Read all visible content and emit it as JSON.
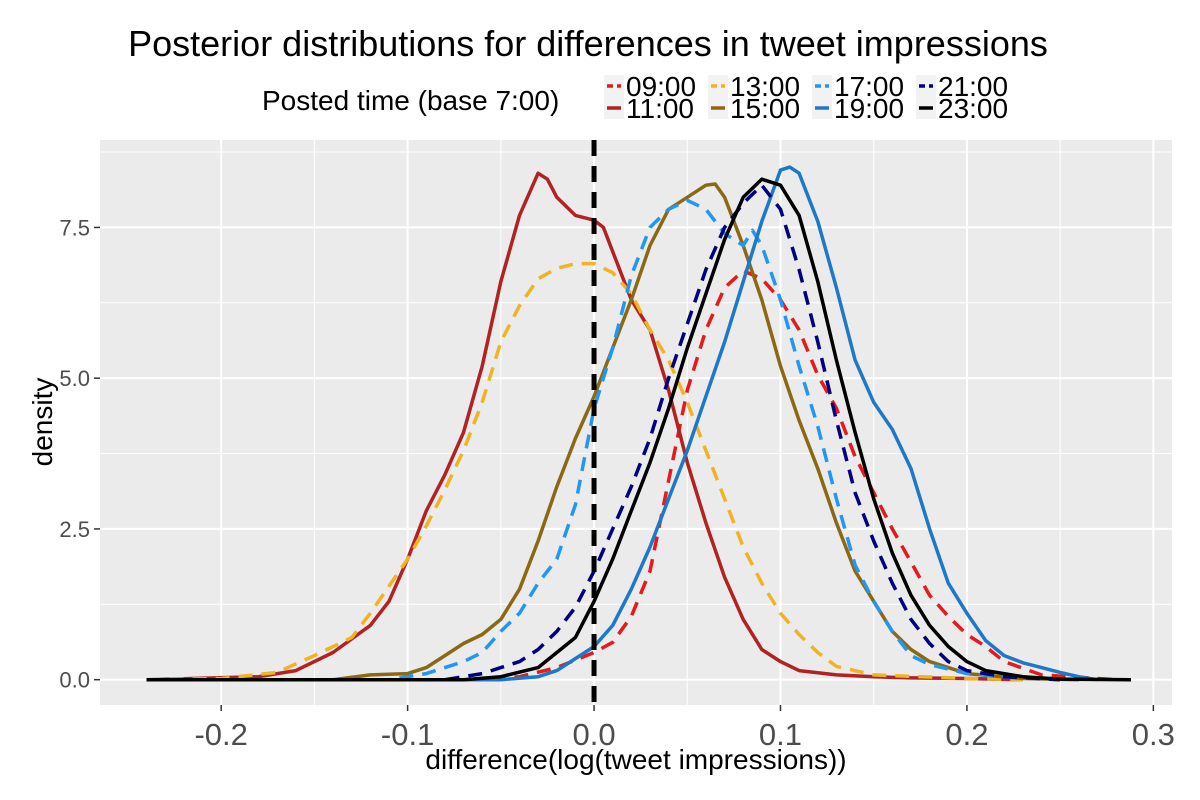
{
  "chart_data": {
    "type": "line",
    "title": "Posterior distributions for differences in tweet impressions",
    "xlabel": "difference(log(tweet impressions))",
    "ylabel": "density",
    "xlim": [
      -0.265,
      0.31
    ],
    "ylim": [
      -0.42,
      8.95
    ],
    "x_ticks": [
      -0.2,
      -0.1,
      0.0,
      0.1,
      0.2,
      0.3
    ],
    "x_tick_labels": [
      "-0.2",
      "-0.1",
      "0.0",
      "0.1",
      "0.2",
      "0.3"
    ],
    "y_ticks": [
      0.0,
      2.5,
      5.0,
      7.5
    ],
    "y_tick_labels": [
      "0.0",
      "2.5",
      "5.0",
      "7.5"
    ],
    "grid": true,
    "reference_line": {
      "x": 0.0,
      "style": "dashed",
      "color": "#000000"
    },
    "legend": {
      "title": "Posted time (base 7:00)",
      "placement": "top",
      "entries": [
        {
          "name": "09:00",
          "color": "#e41a1c",
          "dash": "dashed"
        },
        {
          "name": "11:00",
          "color": "#b22222",
          "dash": "solid"
        },
        {
          "name": "13:00",
          "color": "#f0b323",
          "dash": "dashed"
        },
        {
          "name": "15:00",
          "color": "#8b6914",
          "dash": "solid"
        },
        {
          "name": "17:00",
          "color": "#2196f3",
          "dash": "dashed"
        },
        {
          "name": "19:00",
          "color": "#1e78c8",
          "dash": "solid"
        },
        {
          "name": "21:00",
          "color": "#000080",
          "dash": "dashed"
        },
        {
          "name": "23:00",
          "color": "#000000",
          "dash": "solid"
        }
      ]
    },
    "series": [
      {
        "name": "09:00",
        "color": "#e41a1c",
        "dash": "dashed",
        "points": [
          [
            -0.24,
            0
          ],
          [
            -0.06,
            0
          ],
          [
            -0.04,
            0.05
          ],
          [
            -0.02,
            0.2
          ],
          [
            0,
            0.45
          ],
          [
            0.01,
            0.62
          ],
          [
            0.02,
            1.05
          ],
          [
            0.03,
            1.8
          ],
          [
            0.04,
            3.3
          ],
          [
            0.05,
            4.8
          ],
          [
            0.06,
            5.8
          ],
          [
            0.07,
            6.5
          ],
          [
            0.08,
            6.78
          ],
          [
            0.09,
            6.65
          ],
          [
            0.1,
            6.3
          ],
          [
            0.11,
            5.8
          ],
          [
            0.12,
            5.05
          ],
          [
            0.13,
            4.5
          ],
          [
            0.14,
            3.7
          ],
          [
            0.15,
            3.1
          ],
          [
            0.16,
            2.5
          ],
          [
            0.17,
            1.95
          ],
          [
            0.18,
            1.4
          ],
          [
            0.19,
            1.05
          ],
          [
            0.2,
            0.75
          ],
          [
            0.21,
            0.55
          ],
          [
            0.22,
            0.3
          ],
          [
            0.24,
            0.08
          ],
          [
            0.27,
            0.02
          ],
          [
            0.28,
            0
          ]
        ]
      },
      {
        "name": "11:00",
        "color": "#b22222",
        "dash": "solid",
        "points": [
          [
            -0.24,
            0
          ],
          [
            -0.18,
            0.05
          ],
          [
            -0.16,
            0.15
          ],
          [
            -0.14,
            0.45
          ],
          [
            -0.12,
            0.9
          ],
          [
            -0.11,
            1.3
          ],
          [
            -0.1,
            2.0
          ],
          [
            -0.09,
            2.8
          ],
          [
            -0.08,
            3.4
          ],
          [
            -0.07,
            4.1
          ],
          [
            -0.06,
            5.2
          ],
          [
            -0.05,
            6.6
          ],
          [
            -0.04,
            7.7
          ],
          [
            -0.03,
            8.4
          ],
          [
            -0.025,
            8.3
          ],
          [
            -0.02,
            8.0
          ],
          [
            -0.01,
            7.7
          ],
          [
            0,
            7.62
          ],
          [
            0.005,
            7.5
          ],
          [
            0.01,
            7.1
          ],
          [
            0.02,
            6.3
          ],
          [
            0.03,
            5.8
          ],
          [
            0.04,
            4.8
          ],
          [
            0.05,
            3.6
          ],
          [
            0.06,
            2.6
          ],
          [
            0.07,
            1.7
          ],
          [
            0.08,
            1.0
          ],
          [
            0.09,
            0.5
          ],
          [
            0.1,
            0.3
          ],
          [
            0.11,
            0.15
          ],
          [
            0.13,
            0.08
          ],
          [
            0.15,
            0.05
          ],
          [
            0.17,
            0.03
          ],
          [
            0.2,
            0.02
          ],
          [
            0.23,
            0
          ]
        ]
      },
      {
        "name": "13:00",
        "color": "#f0b323",
        "dash": "dashed",
        "points": [
          [
            -0.24,
            0
          ],
          [
            -0.2,
            0.02
          ],
          [
            -0.17,
            0.12
          ],
          [
            -0.15,
            0.4
          ],
          [
            -0.13,
            0.7
          ],
          [
            -0.12,
            1.1
          ],
          [
            -0.1,
            2.0
          ],
          [
            -0.09,
            2.55
          ],
          [
            -0.08,
            3.15
          ],
          [
            -0.07,
            3.8
          ],
          [
            -0.06,
            4.6
          ],
          [
            -0.05,
            5.6
          ],
          [
            -0.04,
            6.2
          ],
          [
            -0.03,
            6.65
          ],
          [
            -0.02,
            6.82
          ],
          [
            -0.01,
            6.9
          ],
          [
            0,
            6.9
          ],
          [
            0.01,
            6.75
          ],
          [
            0.02,
            6.4
          ],
          [
            0.03,
            5.8
          ],
          [
            0.04,
            5.3
          ],
          [
            0.05,
            4.6
          ],
          [
            0.06,
            3.8
          ],
          [
            0.07,
            3.0
          ],
          [
            0.08,
            2.2
          ],
          [
            0.09,
            1.6
          ],
          [
            0.1,
            1.1
          ],
          [
            0.11,
            0.75
          ],
          [
            0.12,
            0.45
          ],
          [
            0.13,
            0.22
          ],
          [
            0.15,
            0.08
          ],
          [
            0.2,
            0.02
          ],
          [
            0.23,
            0
          ]
        ]
      },
      {
        "name": "15:00",
        "color": "#8b6914",
        "dash": "solid",
        "points": [
          [
            -0.24,
            0
          ],
          [
            -0.14,
            0
          ],
          [
            -0.12,
            0.08
          ],
          [
            -0.1,
            0.1
          ],
          [
            -0.09,
            0.2
          ],
          [
            -0.08,
            0.4
          ],
          [
            -0.07,
            0.6
          ],
          [
            -0.06,
            0.75
          ],
          [
            -0.05,
            1.0
          ],
          [
            -0.04,
            1.5
          ],
          [
            -0.03,
            2.3
          ],
          [
            -0.02,
            3.2
          ],
          [
            -0.01,
            4.0
          ],
          [
            0,
            4.7
          ],
          [
            0.01,
            5.5
          ],
          [
            0.02,
            6.3
          ],
          [
            0.03,
            7.2
          ],
          [
            0.04,
            7.8
          ],
          [
            0.05,
            8.0
          ],
          [
            0.06,
            8.2
          ],
          [
            0.065,
            8.22
          ],
          [
            0.07,
            8.0
          ],
          [
            0.08,
            7.2
          ],
          [
            0.09,
            6.3
          ],
          [
            0.1,
            5.2
          ],
          [
            0.11,
            4.3
          ],
          [
            0.12,
            3.5
          ],
          [
            0.13,
            2.6
          ],
          [
            0.14,
            1.8
          ],
          [
            0.15,
            1.3
          ],
          [
            0.16,
            0.8
          ],
          [
            0.17,
            0.5
          ],
          [
            0.18,
            0.3
          ],
          [
            0.2,
            0.1
          ],
          [
            0.23,
            0.02
          ],
          [
            0.26,
            0
          ]
        ]
      },
      {
        "name": "17:00",
        "color": "#2196f3",
        "dash": "dashed",
        "points": [
          [
            -0.24,
            0
          ],
          [
            -0.11,
            0
          ],
          [
            -0.09,
            0.1
          ],
          [
            -0.07,
            0.3
          ],
          [
            -0.06,
            0.45
          ],
          [
            -0.05,
            0.8
          ],
          [
            -0.04,
            1.1
          ],
          [
            -0.03,
            1.6
          ],
          [
            -0.02,
            2.0
          ],
          [
            -0.01,
            2.9
          ],
          [
            0,
            4.5
          ],
          [
            0.01,
            5.5
          ],
          [
            0.02,
            6.7
          ],
          [
            0.03,
            7.5
          ],
          [
            0.04,
            7.8
          ],
          [
            0.05,
            7.95
          ],
          [
            0.06,
            7.8
          ],
          [
            0.07,
            7.4
          ],
          [
            0.08,
            7.2
          ],
          [
            0.085,
            7.45
          ],
          [
            0.09,
            7.2
          ],
          [
            0.1,
            6.3
          ],
          [
            0.11,
            5.2
          ],
          [
            0.12,
            4.2
          ],
          [
            0.13,
            3.0
          ],
          [
            0.14,
            1.9
          ],
          [
            0.15,
            1.3
          ],
          [
            0.16,
            0.8
          ],
          [
            0.17,
            0.4
          ],
          [
            0.18,
            0.25
          ],
          [
            0.2,
            0.1
          ],
          [
            0.23,
            0.03
          ],
          [
            0.25,
            0
          ]
        ]
      },
      {
        "name": "19:00",
        "color": "#1e78c8",
        "dash": "solid",
        "points": [
          [
            -0.24,
            0
          ],
          [
            -0.05,
            0
          ],
          [
            -0.03,
            0.05
          ],
          [
            -0.02,
            0.15
          ],
          [
            0,
            0.55
          ],
          [
            0.01,
            0.9
          ],
          [
            0.02,
            1.5
          ],
          [
            0.03,
            2.2
          ],
          [
            0.04,
            3.0
          ],
          [
            0.05,
            3.8
          ],
          [
            0.06,
            4.7
          ],
          [
            0.07,
            5.6
          ],
          [
            0.08,
            6.6
          ],
          [
            0.09,
            7.6
          ],
          [
            0.1,
            8.45
          ],
          [
            0.105,
            8.5
          ],
          [
            0.11,
            8.4
          ],
          [
            0.12,
            7.6
          ],
          [
            0.13,
            6.5
          ],
          [
            0.14,
            5.3
          ],
          [
            0.15,
            4.6
          ],
          [
            0.16,
            4.15
          ],
          [
            0.17,
            3.5
          ],
          [
            0.18,
            2.5
          ],
          [
            0.19,
            1.6
          ],
          [
            0.2,
            1.1
          ],
          [
            0.21,
            0.65
          ],
          [
            0.22,
            0.4
          ],
          [
            0.23,
            0.28
          ],
          [
            0.24,
            0.2
          ],
          [
            0.25,
            0.12
          ],
          [
            0.26,
            0.05
          ],
          [
            0.27,
            0
          ]
        ]
      },
      {
        "name": "21:00",
        "color": "#000080",
        "dash": "dashed",
        "points": [
          [
            -0.24,
            0
          ],
          [
            -0.08,
            0
          ],
          [
            -0.06,
            0.1
          ],
          [
            -0.05,
            0.2
          ],
          [
            -0.04,
            0.3
          ],
          [
            -0.03,
            0.5
          ],
          [
            -0.02,
            0.8
          ],
          [
            -0.01,
            1.2
          ],
          [
            0,
            1.8
          ],
          [
            0.01,
            2.5
          ],
          [
            0.02,
            3.2
          ],
          [
            0.03,
            4.0
          ],
          [
            0.04,
            5.0
          ],
          [
            0.05,
            5.9
          ],
          [
            0.06,
            6.8
          ],
          [
            0.07,
            7.5
          ],
          [
            0.08,
            7.9
          ],
          [
            0.09,
            8.2
          ],
          [
            0.1,
            7.8
          ],
          [
            0.11,
            6.8
          ],
          [
            0.12,
            5.6
          ],
          [
            0.13,
            4.3
          ],
          [
            0.14,
            3.1
          ],
          [
            0.15,
            2.3
          ],
          [
            0.16,
            1.6
          ],
          [
            0.17,
            1.0
          ],
          [
            0.18,
            0.6
          ],
          [
            0.19,
            0.3
          ],
          [
            0.2,
            0.15
          ],
          [
            0.22,
            0.05
          ],
          [
            0.25,
            0
          ]
        ]
      },
      {
        "name": "23:00",
        "color": "#000000",
        "dash": "solid",
        "points": [
          [
            -0.24,
            0
          ],
          [
            -0.07,
            0
          ],
          [
            -0.05,
            0.05
          ],
          [
            -0.03,
            0.2
          ],
          [
            -0.01,
            0.7
          ],
          [
            0,
            1.3
          ],
          [
            0.01,
            2.0
          ],
          [
            0.02,
            2.8
          ],
          [
            0.03,
            3.6
          ],
          [
            0.04,
            4.5
          ],
          [
            0.05,
            5.5
          ],
          [
            0.06,
            6.4
          ],
          [
            0.07,
            7.3
          ],
          [
            0.08,
            8.0
          ],
          [
            0.09,
            8.3
          ],
          [
            0.1,
            8.2
          ],
          [
            0.11,
            7.7
          ],
          [
            0.12,
            6.6
          ],
          [
            0.13,
            5.3
          ],
          [
            0.14,
            4.1
          ],
          [
            0.15,
            3.0
          ],
          [
            0.16,
            2.1
          ],
          [
            0.17,
            1.4
          ],
          [
            0.18,
            0.9
          ],
          [
            0.19,
            0.55
          ],
          [
            0.2,
            0.3
          ],
          [
            0.21,
            0.15
          ],
          [
            0.23,
            0.05
          ],
          [
            0.25,
            0.01
          ],
          [
            0.288,
            0
          ]
        ]
      }
    ]
  }
}
